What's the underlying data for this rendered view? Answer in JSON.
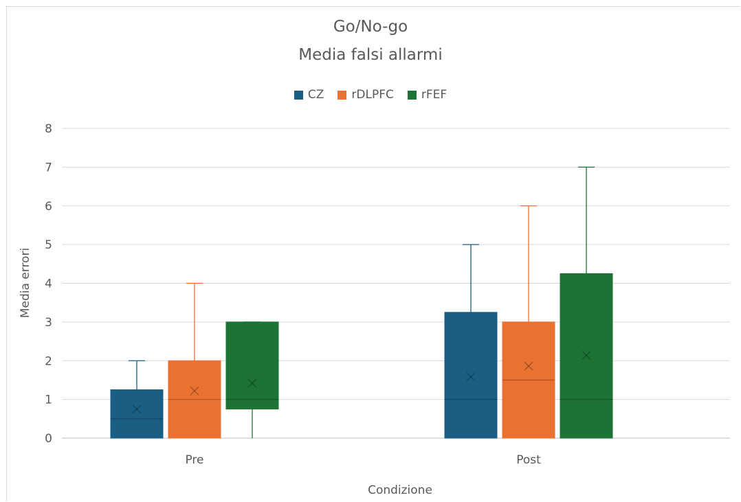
{
  "chart_data": {
    "type": "box",
    "title": "Go/No-go",
    "subtitle": "Media falsi allarmi",
    "xlabel": "Condizione",
    "ylabel": "Media errori",
    "ylim": [
      0,
      8
    ],
    "yticks": [
      "0",
      "1",
      "2",
      "3",
      "4",
      "5",
      "6",
      "7",
      "8"
    ],
    "categories": [
      "Pre",
      "Post"
    ],
    "grid": true,
    "legend_position": "top",
    "series": [
      {
        "name": "CZ",
        "color": "#1a5e84",
        "boxes": [
          {
            "min": 0,
            "q1": 0,
            "median": 0.5,
            "q3": 1.25,
            "max": 2,
            "mean": 0.75
          },
          {
            "min": 0,
            "q1": 0,
            "median": 1,
            "q3": 3.25,
            "max": 5,
            "mean": 1.58
          }
        ]
      },
      {
        "name": "rDLPFC",
        "color": "#e97132",
        "boxes": [
          {
            "min": 0,
            "q1": 0,
            "median": 1,
            "q3": 2,
            "max": 4,
            "mean": 1.22
          },
          {
            "min": 0,
            "q1": 0,
            "median": 1.5,
            "q3": 3,
            "max": 6,
            "mean": 1.86
          }
        ]
      },
      {
        "name": "rFEF",
        "color": "#1d7235",
        "boxes": [
          {
            "min": 0,
            "q1": 0.75,
            "median": 1,
            "q3": 3,
            "max": 3,
            "mean": 1.42
          },
          {
            "min": 0,
            "q1": 0,
            "median": 1,
            "q3": 4.25,
            "max": 7,
            "mean": 2.14
          }
        ]
      }
    ]
  }
}
